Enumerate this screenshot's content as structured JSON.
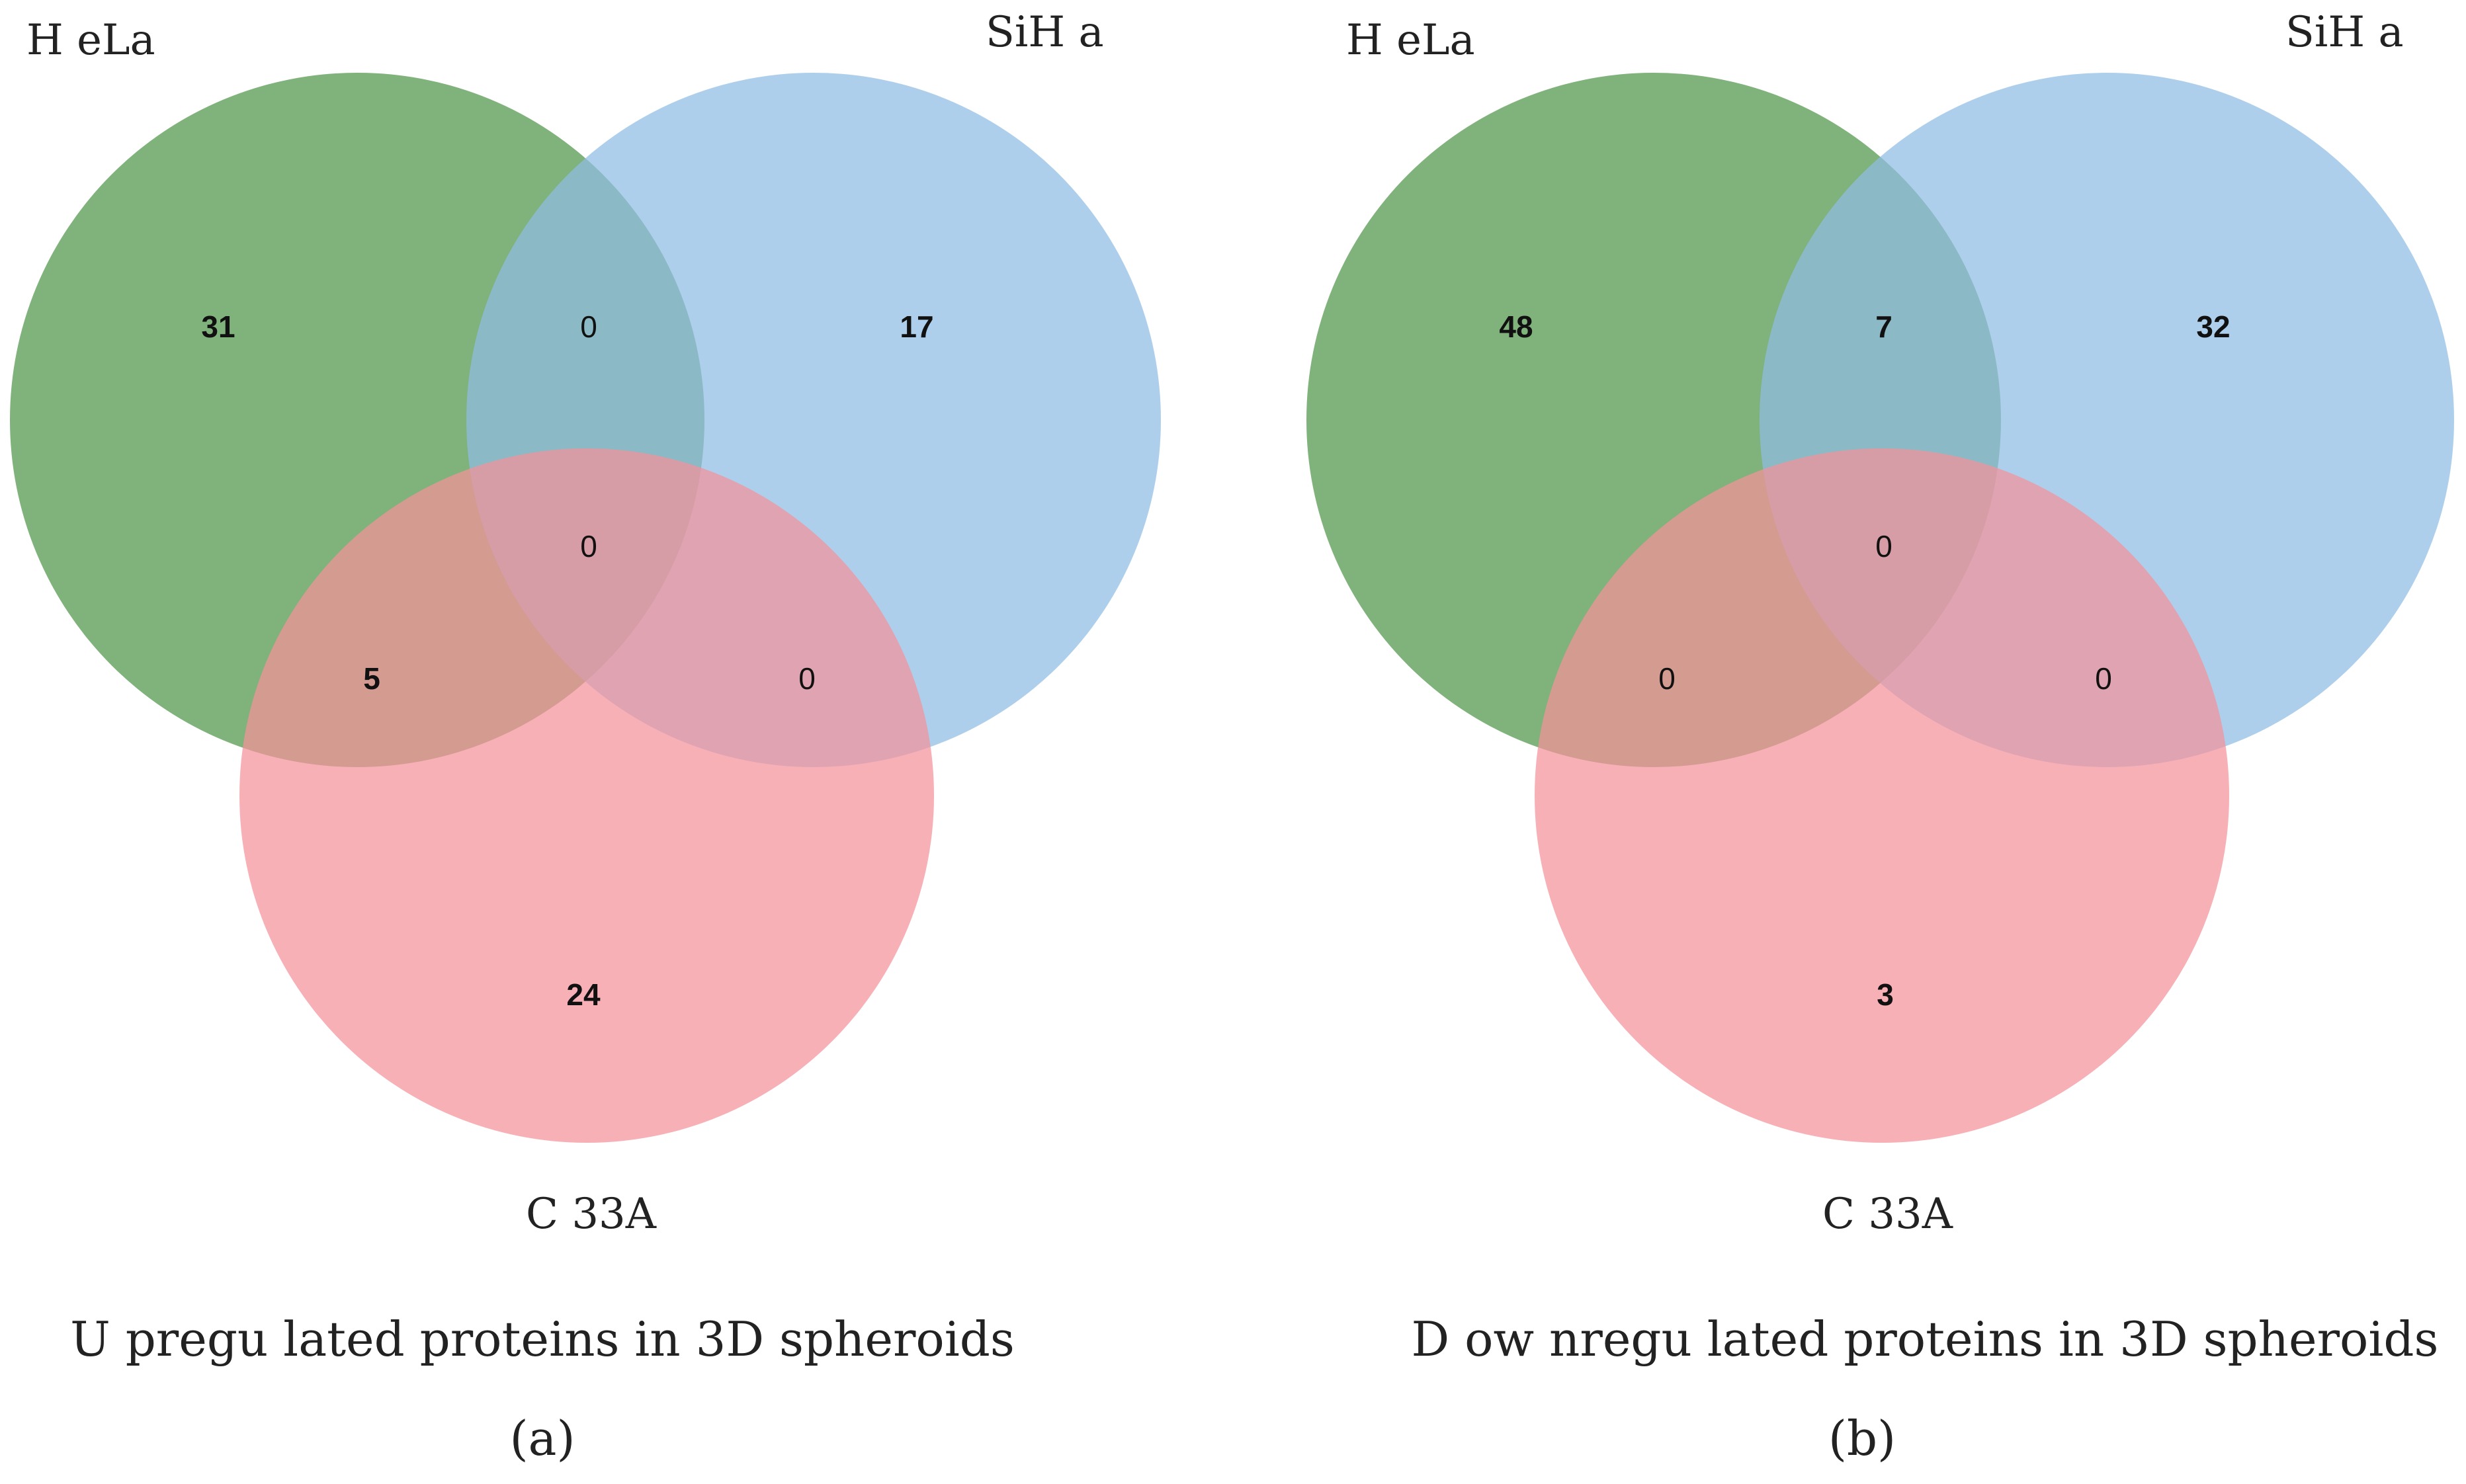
{
  "colors": {
    "hela": "#6aa464",
    "siha": "#8fbde3",
    "c33a": "#f4929a"
  },
  "diagrams": [
    {
      "id": "a",
      "sets": {
        "hela": "H eLa",
        "siha": "SiH a",
        "c33a": "C 33A"
      },
      "counts": {
        "hela_only": "31",
        "siha_only": "17",
        "c33a_only": "24",
        "hela_siha": "0",
        "hela_c33a": "5",
        "siha_c33a": "0",
        "all": "0"
      },
      "caption": "U pregu lated proteins in 3D  spheroids",
      "panel_label": "(a)"
    },
    {
      "id": "b",
      "sets": {
        "hela": "H eLa",
        "siha": "SiH a",
        "c33a": "C 33A"
      },
      "counts": {
        "hela_only": "48",
        "siha_only": "32",
        "c33a_only": "3",
        "hela_siha": "7",
        "hela_c33a": "0",
        "siha_c33a": "0",
        "all": "0"
      },
      "caption": "D ow nregu lated proteins in 3D  spheroids",
      "panel_label": "(b)"
    }
  ]
}
